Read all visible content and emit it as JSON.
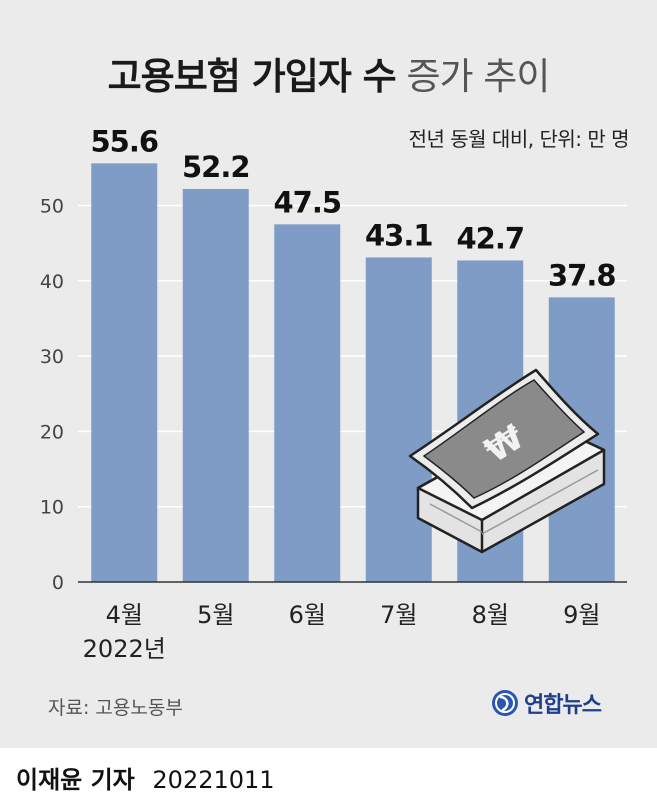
{
  "title": {
    "bold": "고용보험 가입자 수",
    "light": "증가 추이"
  },
  "unit_note": "전년 동월 대비, 단위: 만 명",
  "source": "자료: 고용노동부",
  "logo": {
    "text": "연합뉴스"
  },
  "byline": {
    "reporter": "이재윤 기자",
    "date": "20221011"
  },
  "colors": {
    "bar": "#7f9cc6",
    "background": "#ebebeb",
    "grid": "#ffffff",
    "text": "#1f1f1f"
  },
  "chart_data": {
    "type": "bar",
    "categories": [
      "4월",
      "5월",
      "6월",
      "7월",
      "8월",
      "9월"
    ],
    "category_sublabels": [
      "2022년",
      "",
      "",
      "",
      "",
      ""
    ],
    "values": [
      55.6,
      52.2,
      47.5,
      43.1,
      42.7,
      37.8
    ],
    "data_labels": [
      "55.6",
      "52.2",
      "47.5",
      "43.1",
      "42.7",
      "37.8"
    ],
    "yticks": [
      0,
      10,
      20,
      30,
      40,
      50
    ],
    "ylim": [
      0,
      60
    ],
    "grid": true,
    "legend": "none",
    "decoration": "money-stack-icon"
  }
}
